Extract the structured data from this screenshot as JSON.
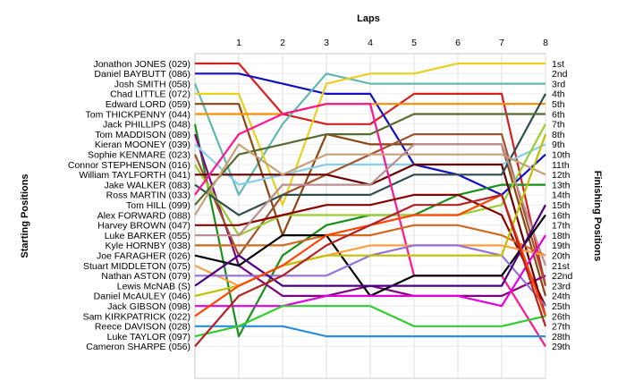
{
  "chart_data": {
    "type": "line",
    "xlabel": "Laps",
    "ylabel_left": "Starting Positions",
    "ylabel_right": "Finishing Positions",
    "x_ticks": [
      1,
      2,
      3,
      4,
      5,
      6,
      7,
      8
    ],
    "xlim": [
      0,
      8
    ],
    "ylim": [
      1,
      29
    ],
    "y_reversed": true,
    "grid": true,
    "starting_labels": [
      "Jonathon JONES (029)",
      "Daniel BAYBUTT (086)",
      "Josh SMITH (058)",
      "Chad LITTLE (072)",
      "Edward LORD (059)",
      "Tom THICKPENNY (044)",
      "Jack PHILLIPS (048)",
      "Tom MADDISON (089)",
      "Kieran MOONEY (039)",
      "Sophie KENMARE (023)",
      "Connor STEPHENSON (016)",
      "William TAYLFORTH (041)",
      "Jake WALKER (083)",
      "Ross MARTIN (033)",
      "Tom HILL (099)",
      "Alex FORWARD (088)",
      "Harvey BROWN (047)",
      "Luke BARKER (055)",
      "Kyle HORNBY (038)",
      "Joe FARAGHER (026)",
      "Stuart MIDDLETON (075)",
      "Nathan ASTON (079)",
      "Lewis McNAB (S)",
      "Daniel McAULEY (046)",
      "Jack GIBSON (098)",
      "Sam KIRKPATRICK (022)",
      "Reece DAVISON (028)",
      "Luke TAYLOR (097)",
      "Cameron SHARPE (056)"
    ],
    "finishing_labels": [
      "1st",
      "2nd",
      "3rd",
      "4th",
      "5th",
      "6th",
      "7th",
      "8th",
      "9th",
      "10th",
      "11th",
      "12th",
      "13th",
      "14th",
      "15th",
      "16th",
      "17th",
      "18th",
      "19th",
      "20th",
      "21st",
      "22nd",
      "23rd",
      "24th",
      "25th",
      "26th",
      "27th",
      "28th",
      "29th"
    ],
    "series": [
      {
        "color": "#d42020",
        "positions": [
          1,
          1,
          6,
          7,
          7,
          4,
          4,
          4,
          23
        ]
      },
      {
        "color": "#1010c0",
        "positions": [
          2,
          2,
          3,
          4,
          4,
          11,
          12,
          14,
          10
        ]
      },
      {
        "color": "#60b8b0",
        "positions": [
          3,
          14,
          7,
          2,
          3,
          3,
          3,
          3,
          3
        ]
      },
      {
        "color": "#e8d020",
        "positions": [
          4,
          4,
          15,
          3,
          2,
          2,
          1,
          1,
          1
        ]
      },
      {
        "color": "#8b4513",
        "positions": [
          5,
          5,
          18,
          8,
          9,
          9,
          9,
          9,
          24
        ]
      },
      {
        "color": "#ff8c00",
        "positions": [
          6,
          6,
          6,
          5,
          5,
          5,
          5,
          5,
          5
        ]
      },
      {
        "color": "#1a8f1a",
        "positions": [
          7,
          28,
          20,
          17,
          16,
          16,
          14,
          13,
          13
        ]
      },
      {
        "color": "#800080",
        "positions": [
          8,
          21,
          24,
          24,
          23,
          24,
          24,
          24,
          22
        ]
      },
      {
        "color": "#87ceeb",
        "positions": [
          9,
          13,
          12,
          11,
          11,
          11,
          11,
          11,
          9
        ]
      },
      {
        "color": "#a0522d",
        "positions": [
          10,
          20,
          14,
          12,
          10,
          8,
          8,
          8,
          23
        ]
      },
      {
        "color": "#9acd32",
        "positions": [
          11,
          18,
          16,
          16,
          16,
          16,
          16,
          15,
          7
        ]
      },
      {
        "color": "#660000",
        "positions": [
          12,
          12,
          12,
          12,
          13,
          11,
          11,
          11,
          26
        ]
      },
      {
        "color": "#2f4f4f",
        "positions": [
          13,
          16,
          14,
          14,
          14,
          12,
          12,
          12,
          4
        ]
      },
      {
        "color": "#ff1493",
        "positions": [
          14,
          8,
          6,
          5,
          5,
          22,
          22,
          22,
          29
        ]
      },
      {
        "color": "#556b2f",
        "positions": [
          15,
          10,
          9,
          8,
          8,
          6,
          6,
          6,
          6
        ]
      },
      {
        "color": "#c8a078",
        "positions": [
          16,
          9,
          12,
          10,
          10,
          10,
          10,
          10,
          12
        ]
      },
      {
        "color": "#8b0000",
        "positions": [
          17,
          17,
          16,
          15,
          15,
          14,
          14,
          16,
          25
        ]
      },
      {
        "color": "#bc8f8f",
        "positions": [
          18,
          18,
          13,
          13,
          13,
          9,
          9,
          9,
          21
        ]
      },
      {
        "color": "#d2691e",
        "positions": [
          19,
          19,
          19,
          18,
          18,
          17,
          17,
          18,
          20
        ]
      },
      {
        "color": "#000000",
        "positions": [
          20,
          21,
          18,
          18,
          24,
          22,
          22,
          22,
          16
        ]
      },
      {
        "color": "#ffa040",
        "positions": [
          21,
          23,
          21,
          20,
          19,
          19,
          19,
          19,
          20
        ]
      },
      {
        "color": "#9370db",
        "positions": [
          22,
          22,
          22,
          22,
          20,
          19,
          19,
          20,
          25
        ]
      },
      {
        "color": "#4b0082",
        "positions": [
          23,
          20,
          23,
          23,
          23,
          23,
          23,
          23,
          15
        ]
      },
      {
        "color": "#c0c000",
        "positions": [
          24,
          23,
          21,
          20,
          20,
          20,
          20,
          20,
          8
        ]
      },
      {
        "color": "#e000e0",
        "positions": [
          25,
          25,
          25,
          24,
          24,
          24,
          24,
          25,
          18
        ]
      },
      {
        "color": "#ff4500",
        "positions": [
          26,
          23,
          21,
          18,
          17,
          16,
          16,
          14,
          26
        ]
      },
      {
        "color": "#2b8fd8",
        "positions": [
          27,
          27,
          27,
          28,
          28,
          28,
          28,
          28,
          28
        ]
      },
      {
        "color": "#32cd32",
        "positions": [
          28,
          27,
          25,
          25,
          25,
          27,
          27,
          27,
          26
        ]
      },
      {
        "color": "#b22222",
        "positions": [
          29,
          24,
          22,
          19,
          17,
          15,
          15,
          14,
          27
        ]
      }
    ]
  }
}
